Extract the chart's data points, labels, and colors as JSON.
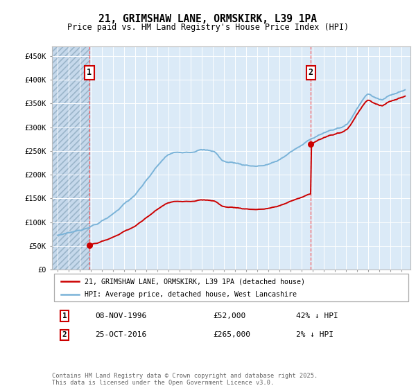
{
  "title": "21, GRIMSHAW LANE, ORMSKIRK, L39 1PA",
  "subtitle": "Price paid vs. HM Land Registry's House Price Index (HPI)",
  "hpi_label": "HPI: Average price, detached house, West Lancashire",
  "price_label": "21, GRIMSHAW LANE, ORMSKIRK, L39 1PA (detached house)",
  "footer": "Contains HM Land Registry data © Crown copyright and database right 2025.\nThis data is licensed under the Open Government Licence v3.0.",
  "annotation1": {
    "label": "1",
    "date": "08-NOV-1996",
    "price": 52000,
    "note": "42% ↓ HPI"
  },
  "annotation2": {
    "label": "2",
    "date": "25-OCT-2016",
    "price": 265000,
    "note": "2% ↓ HPI"
  },
  "xlim_start": 1993.5,
  "xlim_end": 2025.8,
  "ylim_min": 0,
  "ylim_max": 470000,
  "yticks": [
    0,
    50000,
    100000,
    150000,
    200000,
    250000,
    300000,
    350000,
    400000,
    450000
  ],
  "ytick_labels": [
    "£0",
    "£50K",
    "£100K",
    "£150K",
    "£200K",
    "£250K",
    "£300K",
    "£350K",
    "£400K",
    "£450K"
  ],
  "hpi_color": "#7ab3d8",
  "price_color": "#cc0000",
  "marker_color": "#cc0000",
  "vline_color": "#ff4444",
  "background_plot": "#dbeaf7",
  "background_hatch_color": "#c5d8eb",
  "annotation_box_color": "#cc0000",
  "sale1_x": 1996.86,
  "sale1_y": 52000,
  "sale2_x": 2016.82,
  "sale2_y": 265000,
  "hpi_knots_x": [
    1994.0,
    1995.0,
    1996.0,
    1997.0,
    1998.0,
    1999.0,
    2000.0,
    2001.0,
    2002.0,
    2003.0,
    2004.0,
    2005.0,
    2006.0,
    2007.0,
    2008.0,
    2009.0,
    2010.0,
    2011.0,
    2012.0,
    2013.0,
    2014.0,
    2015.0,
    2016.0,
    2017.0,
    2018.0,
    2019.0,
    2020.0,
    2021.0,
    2022.0,
    2023.0,
    2024.0,
    2025.25
  ],
  "hpi_knots_y": [
    72000,
    78000,
    83000,
    91000,
    102000,
    118000,
    138000,
    158000,
    188000,
    218000,
    242000,
    248000,
    248000,
    252000,
    250000,
    228000,
    225000,
    220000,
    218000,
    222000,
    232000,
    248000,
    262000,
    278000,
    288000,
    296000,
    305000,
    340000,
    370000,
    358000,
    368000,
    378000
  ]
}
